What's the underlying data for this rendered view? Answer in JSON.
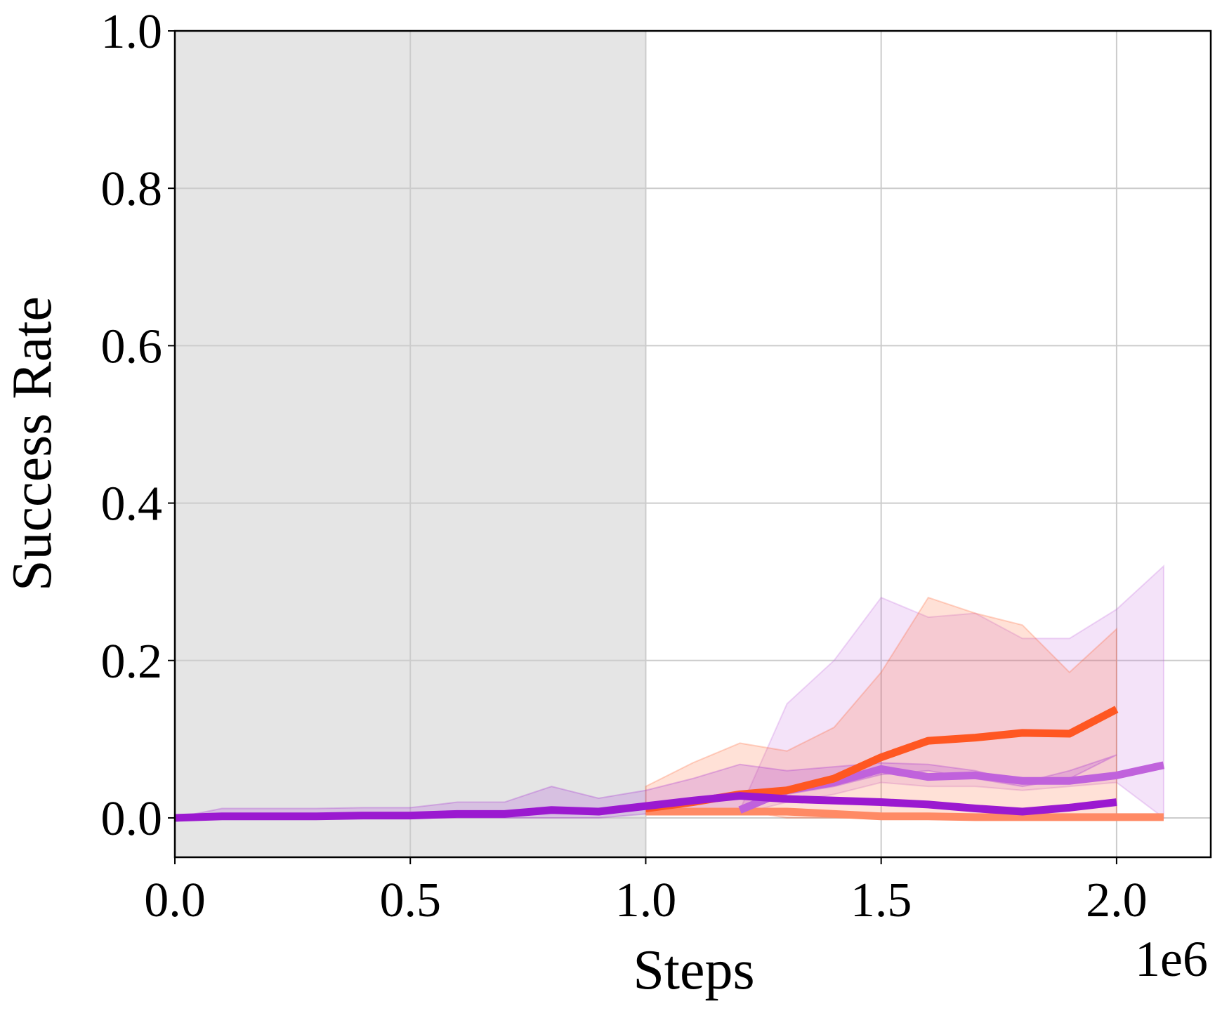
{
  "chart_data": {
    "type": "line",
    "xlabel": "Steps",
    "ylabel": "Success Rate",
    "x_offset_label": "1e6",
    "xlim": [
      0,
      2.2
    ],
    "ylim": [
      -0.05,
      1.0
    ],
    "xticks": [
      {
        "value": 0,
        "label": "0.0"
      },
      {
        "value": 0.5,
        "label": "0.5"
      },
      {
        "value": 1,
        "label": "1.0"
      },
      {
        "value": 1.5,
        "label": "1.5"
      },
      {
        "value": 2,
        "label": "2.0"
      }
    ],
    "yticks": [
      {
        "value": 0,
        "label": "0.0"
      },
      0.2,
      0.4,
      0.6,
      0.8,
      {
        "value": 1,
        "label": "1.0"
      }
    ],
    "grid": true,
    "shaded_xspan": [
      0,
      1.0
    ],
    "shaded_color": "#e5e5e5",
    "series": [
      {
        "color": "#ff8a65",
        "x": [
          1.0,
          1.1,
          1.2,
          1.3,
          1.4,
          1.5,
          1.6,
          1.7,
          1.8,
          1.9,
          2.0,
          2.1
        ],
        "values": [
          0.008,
          0.008,
          0.008,
          0.008,
          0.005,
          0.002,
          0.002,
          0.001,
          0.001,
          0.001,
          0.001,
          0.001
        ]
      },
      {
        "color": "#c062dc",
        "x": [
          1.2,
          1.3,
          1.4,
          1.5,
          1.6,
          1.7,
          1.8,
          1.9,
          2.0,
          2.1
        ],
        "values": [
          0.01,
          0.035,
          0.045,
          0.062,
          0.052,
          0.054,
          0.047,
          0.047,
          0.054,
          0.067
        ],
        "band_lower": [
          0.005,
          0.02,
          0.03,
          0.045,
          0.04,
          0.04,
          0.035,
          0.04,
          0.045,
          0.0
        ],
        "band_upper": [
          0.01,
          0.145,
          0.2,
          0.28,
          0.255,
          0.26,
          0.228,
          0.228,
          0.265,
          0.32
        ]
      },
      {
        "color": "#ff5722",
        "x": [
          1.0,
          1.1,
          1.2,
          1.3,
          1.4,
          1.5,
          1.6,
          1.7,
          1.8,
          1.9,
          2.0
        ],
        "values": [
          0.012,
          0.02,
          0.03,
          0.035,
          0.05,
          0.077,
          0.098,
          0.102,
          0.108,
          0.107,
          0.138
        ],
        "band_lower": [
          0.005,
          0.005,
          0.01,
          0.0,
          0.0,
          0.0,
          0.0,
          0.0,
          0.0,
          0.0,
          0.0
        ],
        "band_upper": [
          0.04,
          0.07,
          0.095,
          0.085,
          0.115,
          0.185,
          0.28,
          0.26,
          0.245,
          0.185,
          0.24
        ]
      },
      {
        "color": "#9b19d0",
        "x": [
          0,
          0.1,
          0.2,
          0.3,
          0.4,
          0.5,
          0.6,
          0.7,
          0.8,
          0.9,
          1.0,
          1.1,
          1.2,
          1.3,
          1.4,
          1.5,
          1.6,
          1.7,
          1.8,
          1.9,
          2.0
        ],
        "values": [
          0,
          0.002,
          0.002,
          0.002,
          0.003,
          0.003,
          0.005,
          0.005,
          0.01,
          0.008,
          0.015,
          0.022,
          0.028,
          0.024,
          0.022,
          0.02,
          0.017,
          0.012,
          0.008,
          0.013,
          0.02
        ],
        "band_lower": [
          0,
          0,
          0,
          0,
          0,
          0,
          0,
          0,
          0,
          0,
          0.005,
          0.008,
          0.008,
          0.03,
          0.04,
          0.055,
          0.06,
          0.05,
          0.04,
          0.05,
          0.08
        ],
        "band_upper": [
          0,
          0.012,
          0.012,
          0.012,
          0.013,
          0.013,
          0.02,
          0.02,
          0.04,
          0.025,
          0.035,
          0.05,
          0.068,
          0.06,
          0.065,
          0.07,
          0.068,
          0.06,
          0.045,
          0.06,
          0.08
        ]
      }
    ]
  }
}
